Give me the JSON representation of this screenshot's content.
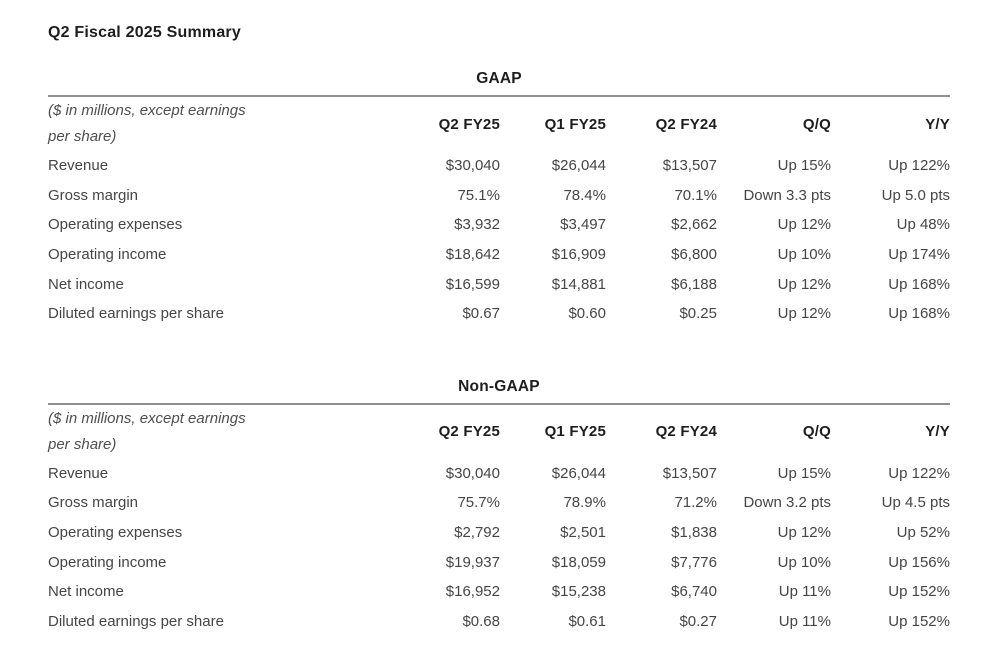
{
  "page": {
    "title": "Q2 Fiscal 2025 Summary"
  },
  "colors": {
    "background": "#ffffff",
    "heading_text": "#1d1d1d",
    "body_text": "#454545",
    "note_text": "#4e4e4e",
    "rule": "#8f8f8f"
  },
  "tables": [
    {
      "heading": "GAAP",
      "note_line1": "($ in millions, except earnings",
      "note_line2": "per share)",
      "columns": [
        "Q2 FY25",
        "Q1 FY25",
        "Q2 FY24",
        "Q/Q",
        "Y/Y"
      ],
      "rows": [
        {
          "label": "Revenue",
          "values": [
            "$30,040",
            "$26,044",
            "$13,507",
            "Up 15%",
            "Up 122%"
          ]
        },
        {
          "label": "Gross margin",
          "values": [
            "75.1%",
            "78.4%",
            "70.1%",
            "Down 3.3 pts",
            "Up 5.0 pts"
          ]
        },
        {
          "label": "Operating expenses",
          "values": [
            "$3,932",
            "$3,497",
            "$2,662",
            "Up 12%",
            "Up 48%"
          ]
        },
        {
          "label": "Operating income",
          "values": [
            "$18,642",
            "$16,909",
            "$6,800",
            "Up 10%",
            "Up 174%"
          ]
        },
        {
          "label": "Net income",
          "values": [
            "$16,599",
            "$14,881",
            "$6,188",
            "Up 12%",
            "Up 168%"
          ]
        },
        {
          "label": "Diluted earnings per share",
          "values": [
            "$0.67",
            "$0.60",
            "$0.25",
            "Up 12%",
            "Up 168%"
          ]
        }
      ]
    },
    {
      "heading": "Non-GAAP",
      "note_line1": "($ in millions, except earnings",
      "note_line2": "per share)",
      "columns": [
        "Q2 FY25",
        "Q1 FY25",
        "Q2 FY24",
        "Q/Q",
        "Y/Y"
      ],
      "rows": [
        {
          "label": "Revenue",
          "values": [
            "$30,040",
            "$26,044",
            "$13,507",
            "Up 15%",
            "Up 122%"
          ]
        },
        {
          "label": "Gross margin",
          "values": [
            "75.7%",
            "78.9%",
            "71.2%",
            "Down 3.2 pts",
            "Up 4.5 pts"
          ]
        },
        {
          "label": "Operating expenses",
          "values": [
            "$2,792",
            "$2,501",
            "$1,838",
            "Up 12%",
            "Up 52%"
          ]
        },
        {
          "label": "Operating income",
          "values": [
            "$19,937",
            "$18,059",
            "$7,776",
            "Up 10%",
            "Up 156%"
          ]
        },
        {
          "label": "Net income",
          "values": [
            "$16,952",
            "$15,238",
            "$6,740",
            "Up 11%",
            "Up 152%"
          ]
        },
        {
          "label": "Diluted earnings per share",
          "values": [
            "$0.68",
            "$0.61",
            "$0.27",
            "Up 11%",
            "Up 152%"
          ]
        }
      ]
    }
  ]
}
